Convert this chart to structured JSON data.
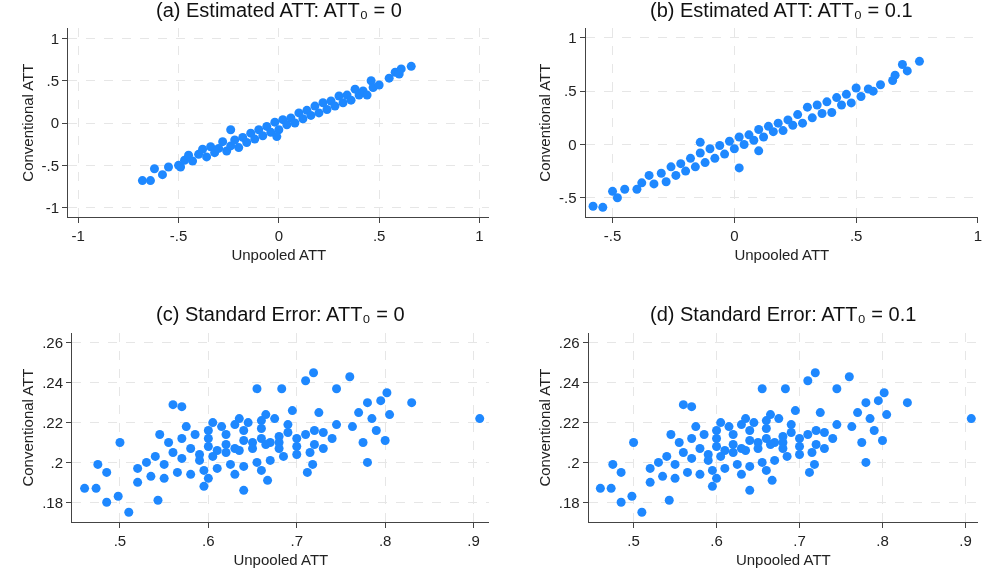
{
  "chart_data": [
    {
      "type": "scatter",
      "title": "(a) Estimated ATT: ATT₀ = 0",
      "xlabel": "Unpooled ATT",
      "ylabel": "Conventional ATT",
      "color": "#1e88ff",
      "marker": "circle",
      "grid": true,
      "x": [
        -0.68,
        -0.64,
        -0.62,
        -0.58,
        -0.55,
        -0.5,
        -0.49,
        -0.47,
        -0.45,
        -0.43,
        -0.4,
        -0.38,
        -0.36,
        -0.34,
        -0.32,
        -0.3,
        -0.28,
        -0.26,
        -0.24,
        -0.22,
        -0.2,
        -0.18,
        -0.16,
        -0.14,
        -0.12,
        -0.1,
        -0.08,
        -0.06,
        -0.04,
        -0.02,
        0,
        0.02,
        0.04,
        0.06,
        0.08,
        0.1,
        0.12,
        0.14,
        0.16,
        0.18,
        0.2,
        0.22,
        0.24,
        0.26,
        0.28,
        0.3,
        0.32,
        0.34,
        0.36,
        0.38,
        0.4,
        0.42,
        0.44,
        0.46,
        0.47,
        0.5,
        0.55,
        0.58,
        0.6,
        0.61,
        0.66,
        -0.24,
        -0.01
      ],
      "values": [
        -0.68,
        -0.68,
        -0.54,
        -0.61,
        -0.52,
        -0.5,
        -0.52,
        -0.44,
        -0.38,
        -0.45,
        -0.37,
        -0.31,
        -0.4,
        -0.28,
        -0.35,
        -0.3,
        -0.22,
        -0.33,
        -0.27,
        -0.2,
        -0.29,
        -0.17,
        -0.23,
        -0.12,
        -0.19,
        -0.08,
        -0.15,
        -0.04,
        -0.11,
        0.01,
        -0.08,
        0.04,
        -0.02,
        0.06,
        0.0,
        0.12,
        0.05,
        0.15,
        0.09,
        0.2,
        0.12,
        0.24,
        0.16,
        0.26,
        0.2,
        0.32,
        0.24,
        0.33,
        0.27,
        0.4,
        0.33,
        0.38,
        0.33,
        0.5,
        0.42,
        0.45,
        0.53,
        0.6,
        0.58,
        0.64,
        0.67,
        -0.08,
        -0.16
      ],
      "xlim": [
        -1.05,
        1.05
      ],
      "ylim": [
        -1.11,
        1.12
      ],
      "xticks": [
        -1,
        {
          "value": -0.5,
          "label": "-.5"
        },
        0,
        {
          "value": 0.5,
          "label": ".5"
        },
        1
      ],
      "yticks": [
        -1,
        {
          "value": -0.5,
          "label": "-.5"
        },
        0,
        {
          "value": 0.5,
          "label": ".5"
        },
        1
      ]
    },
    {
      "type": "scatter",
      "title": "(b) Estimated ATT: ATT₀ = 0.1",
      "xlabel": "Unpooled ATT",
      "ylabel": "Conventional ATT",
      "color": "#1e88ff",
      "marker": "circle",
      "grid": true,
      "x": [
        -0.58,
        -0.54,
        -0.5,
        -0.48,
        -0.45,
        -0.4,
        -0.38,
        -0.35,
        -0.33,
        -0.3,
        -0.28,
        -0.26,
        -0.24,
        -0.22,
        -0.2,
        -0.18,
        -0.16,
        -0.14,
        -0.12,
        -0.1,
        -0.08,
        -0.06,
        -0.04,
        -0.02,
        0,
        0.02,
        0.04,
        0.06,
        0.08,
        0.1,
        0.12,
        0.14,
        0.16,
        0.18,
        0.2,
        0.22,
        0.24,
        0.26,
        0.28,
        0.3,
        0.32,
        0.34,
        0.36,
        0.38,
        0.4,
        0.42,
        0.44,
        0.46,
        0.48,
        0.5,
        0.52,
        0.55,
        0.57,
        0.6,
        0.65,
        0.66,
        0.69,
        0.71,
        0.76,
        -0.14,
        0.02,
        0.1
      ],
      "values": [
        -0.58,
        -0.59,
        -0.44,
        -0.5,
        -0.42,
        -0.42,
        -0.36,
        -0.29,
        -0.37,
        -0.27,
        -0.35,
        -0.21,
        -0.29,
        -0.18,
        -0.25,
        -0.13,
        -0.21,
        -0.08,
        -0.17,
        -0.04,
        -0.13,
        -0.01,
        -0.09,
        0.03,
        -0.04,
        0.07,
        0.0,
        0.09,
        0.04,
        0.14,
        0.07,
        0.17,
        0.12,
        0.2,
        0.13,
        0.23,
        0.18,
        0.28,
        0.2,
        0.35,
        0.25,
        0.37,
        0.29,
        0.4,
        0.3,
        0.44,
        0.37,
        0.47,
        0.39,
        0.53,
        0.45,
        0.52,
        0.5,
        0.56,
        0.6,
        0.65,
        0.75,
        0.69,
        0.78,
        0.02,
        -0.22,
        -0.06
      ],
      "xlim": [
        -0.61,
        1.0
      ],
      "ylim": [
        -0.68,
        1.09
      ],
      "xticks": [
        {
          "value": -0.5,
          "label": "-.5"
        },
        0,
        {
          "value": 0.5,
          "label": ".5"
        },
        1
      ],
      "yticks": [
        {
          "value": -0.5,
          "label": "-.5"
        },
        0,
        {
          "value": 0.5,
          "label": ".5"
        },
        1
      ]
    },
    {
      "type": "scatter",
      "title": "(c) Standard Error: ATT₀ = 0",
      "xlabel": "Unpooled ATT",
      "ylabel": "Conventional ATT",
      "color": "#1e88ff",
      "marker": "circle",
      "grid": true,
      "x": [
        0.46,
        0.473,
        0.485,
        0.51,
        0.475,
        0.498,
        0.543,
        0.907,
        0.83,
        0.802,
        0.805,
        0.8,
        0.78,
        0.76,
        0.719,
        0.71,
        0.655,
        0.683,
        0.745,
        0.56,
        0.57,
        0.795,
        0.78,
        0.77,
        0.785,
        0.79,
        0.775,
        0.763,
        0.745,
        0.712,
        0.667,
        0.718,
        0.64,
        0.595,
        0.5,
        0.485,
        0.52,
        0.53,
        0.54,
        0.55,
        0.56,
        0.57,
        0.58,
        0.59,
        0.6,
        0.61,
        0.62,
        0.63,
        0.64,
        0.65,
        0.66,
        0.67,
        0.68,
        0.69,
        0.7,
        0.71,
        0.72,
        0.73,
        0.74,
        0.52,
        0.535,
        0.55,
        0.565,
        0.58,
        0.595,
        0.61,
        0.625,
        0.64,
        0.655,
        0.67,
        0.685,
        0.7,
        0.715,
        0.73,
        0.545,
        0.575,
        0.605,
        0.635,
        0.665,
        0.695,
        0.725,
        0.555,
        0.57,
        0.585,
        0.6,
        0.615,
        0.63,
        0.645,
        0.66,
        0.675,
        0.69,
        0.59,
        0.605,
        0.62,
        0.635,
        0.65,
        0.665,
        0.68,
        0.6,
        0.62,
        0.64,
        0.66,
        0.68,
        0.7,
        0.72,
        0.6,
        0.63,
        0.66
      ],
      "values": [
        0.187,
        0.187,
        0.18,
        0.175,
        0.199,
        0.183,
        0.181,
        0.222,
        0.23,
        0.235,
        0.224,
        0.211,
        0.2,
        0.243,
        0.245,
        0.241,
        0.237,
        0.237,
        0.237,
        0.229,
        0.228,
        0.231,
        0.23,
        0.225,
        0.222,
        0.216,
        0.21,
        0.218,
        0.219,
        0.195,
        0.191,
        0.199,
        0.186,
        0.188,
        0.21,
        0.195,
        0.197,
        0.2,
        0.203,
        0.199,
        0.205,
        0.202,
        0.207,
        0.204,
        0.208,
        0.206,
        0.209,
        0.207,
        0.211,
        0.21,
        0.212,
        0.21,
        0.213,
        0.215,
        0.212,
        0.214,
        0.216,
        0.215,
        0.212,
        0.19,
        0.193,
        0.192,
        0.195,
        0.194,
        0.196,
        0.197,
        0.199,
        0.198,
        0.2,
        0.201,
        0.203,
        0.204,
        0.205,
        0.207,
        0.214,
        0.218,
        0.22,
        0.222,
        0.224,
        0.226,
        0.225,
        0.21,
        0.212,
        0.214,
        0.216,
        0.218,
        0.219,
        0.22,
        0.221,
        0.222,
        0.219,
        0.201,
        0.203,
        0.205,
        0.206,
        0.207,
        0.209,
        0.21,
        0.212,
        0.214,
        0.216,
        0.217,
        0.207,
        0.208,
        0.209,
        0.192,
        0.194,
        0.196
      ],
      "xlim": [
        0.446,
        0.918
      ],
      "ylim": [
        0.17,
        0.265
      ],
      "xticks": [
        {
          "value": 0.5,
          "label": ".5"
        },
        {
          "value": 0.6,
          "label": ".6"
        },
        {
          "value": 0.7,
          "label": ".7"
        },
        {
          "value": 0.8,
          "label": ".8"
        },
        {
          "value": 0.9,
          "label": ".9"
        }
      ],
      "yticks": [
        {
          "value": 0.18,
          "label": ".18"
        },
        {
          "value": 0.2,
          "label": ".2"
        },
        {
          "value": 0.22,
          "label": ".22"
        },
        {
          "value": 0.24,
          "label": ".24"
        },
        {
          "value": 0.26,
          "label": ".26"
        }
      ]
    },
    {
      "type": "scatter",
      "title": "(d) Standard Error: ATT₀ = 0.1",
      "xlabel": "Unpooled ATT",
      "ylabel": "Conventional ATT",
      "color": "#1e88ff",
      "marker": "circle",
      "grid": true,
      "x": [
        0.46,
        0.473,
        0.485,
        0.51,
        0.475,
        0.498,
        0.543,
        0.907,
        0.83,
        0.802,
        0.805,
        0.8,
        0.78,
        0.76,
        0.719,
        0.71,
        0.655,
        0.683,
        0.745,
        0.56,
        0.57,
        0.795,
        0.78,
        0.77,
        0.785,
        0.79,
        0.775,
        0.763,
        0.745,
        0.712,
        0.667,
        0.718,
        0.64,
        0.595,
        0.5,
        0.485,
        0.52,
        0.53,
        0.54,
        0.55,
        0.56,
        0.57,
        0.58,
        0.59,
        0.6,
        0.61,
        0.62,
        0.63,
        0.64,
        0.65,
        0.66,
        0.67,
        0.68,
        0.69,
        0.7,
        0.71,
        0.72,
        0.73,
        0.74,
        0.52,
        0.535,
        0.55,
        0.565,
        0.58,
        0.595,
        0.61,
        0.625,
        0.64,
        0.655,
        0.67,
        0.685,
        0.7,
        0.715,
        0.73,
        0.545,
        0.575,
        0.605,
        0.635,
        0.665,
        0.695,
        0.725,
        0.555,
        0.57,
        0.585,
        0.6,
        0.615,
        0.63,
        0.645,
        0.66,
        0.675,
        0.69,
        0.59,
        0.605,
        0.62,
        0.635,
        0.65,
        0.665,
        0.68,
        0.6,
        0.62,
        0.64,
        0.66,
        0.68,
        0.7,
        0.72,
        0.6,
        0.63,
        0.66
      ],
      "values": [
        0.187,
        0.187,
        0.18,
        0.175,
        0.199,
        0.183,
        0.181,
        0.222,
        0.23,
        0.235,
        0.224,
        0.211,
        0.2,
        0.243,
        0.245,
        0.241,
        0.237,
        0.237,
        0.237,
        0.229,
        0.228,
        0.231,
        0.23,
        0.225,
        0.222,
        0.216,
        0.21,
        0.218,
        0.219,
        0.195,
        0.191,
        0.199,
        0.186,
        0.188,
        0.21,
        0.195,
        0.197,
        0.2,
        0.203,
        0.199,
        0.205,
        0.202,
        0.207,
        0.204,
        0.208,
        0.206,
        0.209,
        0.207,
        0.211,
        0.21,
        0.212,
        0.21,
        0.213,
        0.215,
        0.212,
        0.214,
        0.216,
        0.215,
        0.212,
        0.19,
        0.193,
        0.192,
        0.195,
        0.194,
        0.196,
        0.197,
        0.199,
        0.198,
        0.2,
        0.201,
        0.203,
        0.204,
        0.205,
        0.207,
        0.214,
        0.218,
        0.22,
        0.222,
        0.224,
        0.226,
        0.225,
        0.21,
        0.212,
        0.214,
        0.216,
        0.218,
        0.219,
        0.22,
        0.221,
        0.222,
        0.219,
        0.201,
        0.203,
        0.205,
        0.206,
        0.207,
        0.209,
        0.21,
        0.212,
        0.214,
        0.216,
        0.217,
        0.207,
        0.208,
        0.209,
        0.192,
        0.194,
        0.196
      ],
      "xlim": [
        0.446,
        0.915
      ],
      "ylim": [
        0.17,
        0.265
      ],
      "xticks": [
        {
          "value": 0.5,
          "label": ".5"
        },
        {
          "value": 0.6,
          "label": ".6"
        },
        {
          "value": 0.7,
          "label": ".7"
        },
        {
          "value": 0.8,
          "label": ".8"
        },
        {
          "value": 0.9,
          "label": ".9"
        }
      ],
      "yticks": [
        {
          "value": 0.18,
          "label": ".18"
        },
        {
          "value": 0.2,
          "label": ".2"
        },
        {
          "value": 0.22,
          "label": ".22"
        },
        {
          "value": 0.24,
          "label": ".24"
        },
        {
          "value": 0.26,
          "label": ".26"
        }
      ]
    }
  ]
}
